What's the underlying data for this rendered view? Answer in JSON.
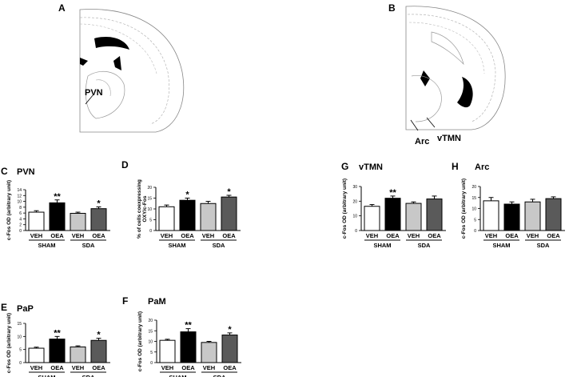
{
  "figure": {
    "letters": [
      "A",
      "B",
      "C",
      "D",
      "E",
      "F",
      "G",
      "H"
    ],
    "atlas_labels": [
      "PVN",
      "vTMN",
      "Arc"
    ]
  },
  "chart_data": [
    {
      "letter": "C",
      "title": "PVN",
      "type": "bar",
      "ylabel": "c-Fos OD (arbitrary unit)",
      "ylim": [
        0,
        14
      ],
      "ticks": [
        0,
        2,
        4,
        6,
        8,
        10,
        12,
        14
      ],
      "groups": [
        "SHAM",
        "SDA"
      ],
      "categories": [
        "VEH",
        "OEA",
        "VEH",
        "OEA"
      ],
      "values": [
        6.3,
        9.5,
        5.9,
        7.5
      ],
      "errors": [
        0.5,
        1.0,
        0.4,
        0.6
      ],
      "significance": [
        "",
        "**",
        "",
        "*"
      ]
    },
    {
      "letter": "D",
      "title": "",
      "type": "bar",
      "ylabel": "% of cells coexpressing OXY/c-Fos",
      "ylim": [
        0,
        20
      ],
      "ticks": [
        0,
        5,
        10,
        15,
        20
      ],
      "groups": [
        "SHAM",
        "SDA"
      ],
      "categories": [
        "VEH",
        "OEA",
        "VEH",
        "OEA"
      ],
      "values": [
        11,
        14,
        12.5,
        15.5
      ],
      "errors": [
        0.8,
        1.0,
        1.0,
        0.8
      ],
      "significance": [
        "",
        "*",
        "",
        "*"
      ]
    },
    {
      "letter": "E",
      "title": "PaP",
      "type": "bar",
      "ylabel": "c-Fos OD (arbitrary unit)",
      "ylim": [
        0,
        15
      ],
      "ticks": [
        0,
        5,
        10,
        15
      ],
      "groups": [
        "SHAM",
        "SDA"
      ],
      "categories": [
        "VEH",
        "OEA",
        "VEH",
        "OEA"
      ],
      "values": [
        5.5,
        9,
        6,
        8.5
      ],
      "errors": [
        0.4,
        1.0,
        0.4,
        0.8
      ],
      "significance": [
        "",
        "**",
        "",
        "*"
      ]
    },
    {
      "letter": "F",
      "title": "PaM",
      "type": "bar",
      "ylabel": "c-Fos OD (arbitrary unit)",
      "ylim": [
        0,
        20
      ],
      "ticks": [
        0,
        5,
        10,
        15,
        20
      ],
      "groups": [
        "SHAM",
        "SDA"
      ],
      "categories": [
        "VEH",
        "OEA",
        "VEH",
        "OEA"
      ],
      "values": [
        10.5,
        14.5,
        9.5,
        13
      ],
      "errors": [
        0.5,
        1.5,
        0.5,
        1.0
      ],
      "significance": [
        "",
        "**",
        "",
        "*"
      ]
    },
    {
      "letter": "G",
      "title": "vTMN",
      "type": "bar",
      "ylabel": "c-Fos OD (arbitrary unit)",
      "ylim": [
        0,
        30
      ],
      "ticks": [
        0,
        10,
        20,
        30
      ],
      "groups": [
        "SHAM",
        "SDA"
      ],
      "categories": [
        "VEH",
        "OEA",
        "VEH",
        "OEA"
      ],
      "values": [
        16.5,
        22,
        18.5,
        21.5
      ],
      "errors": [
        1.2,
        1.5,
        1.0,
        2.0
      ],
      "significance": [
        "",
        "**",
        "",
        ""
      ]
    },
    {
      "letter": "H",
      "title": "Arc",
      "type": "bar",
      "ylabel": "c-Fos OD (arbitrary unit)",
      "ylim": [
        0,
        20
      ],
      "ticks": [
        0,
        5,
        10,
        15,
        20
      ],
      "groups": [
        "SHAM",
        "SDA"
      ],
      "categories": [
        "VEH",
        "OEA",
        "VEH",
        "OEA"
      ],
      "values": [
        13.5,
        12,
        13,
        14.5
      ],
      "errors": [
        1.5,
        1.0,
        1.2,
        0.8
      ],
      "significance": [
        "",
        "",
        "",
        ""
      ]
    }
  ],
  "style": {
    "bar_colors": [
      "#ffffff",
      "#000000",
      "#c8c8c8",
      "#5a5a5a"
    ],
    "atlas_fill": "#000000"
  }
}
